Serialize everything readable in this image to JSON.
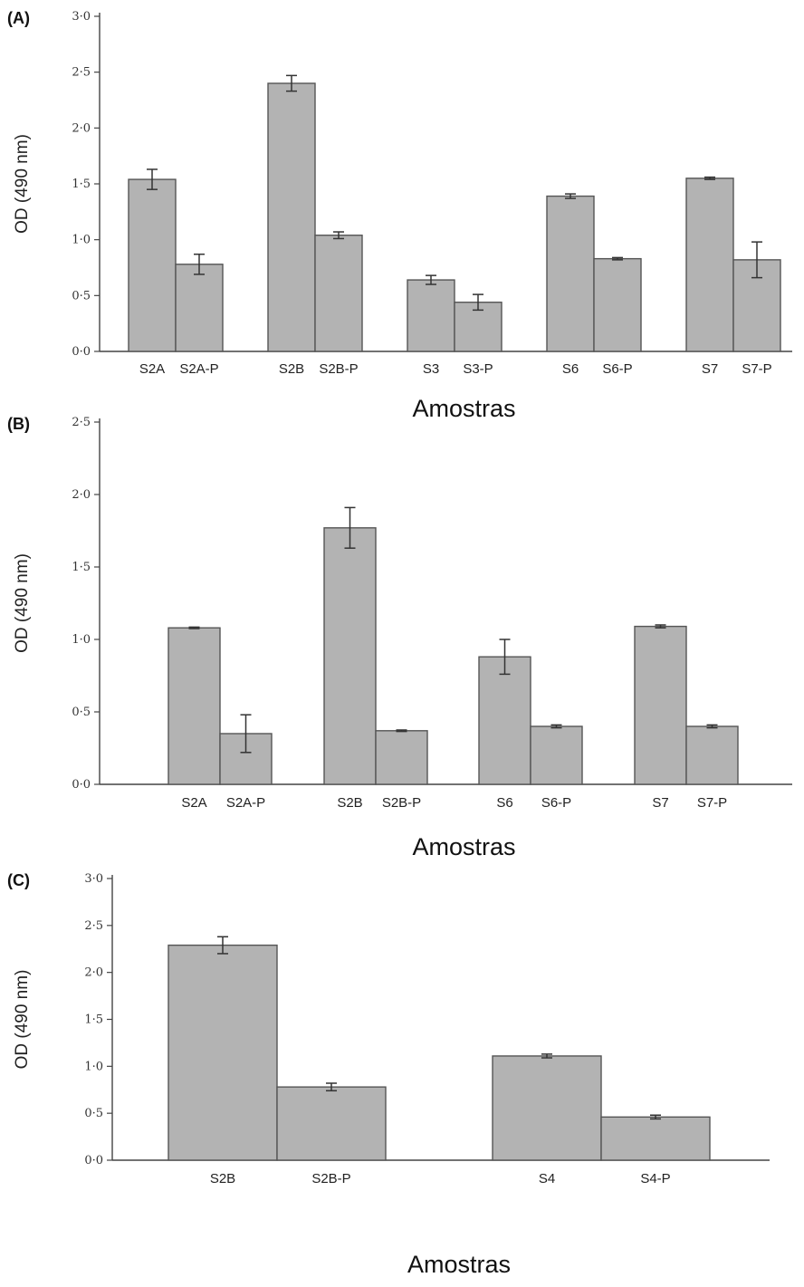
{
  "chart_data": [
    {
      "type": "bar",
      "panel_label": "(A)",
      "xlabel": "Amostras",
      "ylabel": "OD (490 nm)",
      "ylim": [
        0,
        3.0
      ],
      "yticks": [
        "0·0",
        "0·5",
        "1·0",
        "1·5",
        "2·0",
        "2·5",
        "3·0"
      ],
      "grid": false,
      "categories": [
        "S2A",
        "S2A-P",
        "S2B",
        "S2B-P",
        "S3",
        "S3-P",
        "S6",
        "S6-P",
        "S7",
        "S7-P"
      ],
      "values": [
        1.54,
        0.78,
        2.4,
        1.04,
        0.64,
        0.44,
        1.39,
        0.83,
        1.55,
        0.82
      ],
      "errors": [
        0.09,
        0.09,
        0.07,
        0.03,
        0.04,
        0.07,
        0.02,
        0.01,
        0.01,
        0.16
      ]
    },
    {
      "type": "bar",
      "panel_label": "(B)",
      "xlabel": "Amostras",
      "ylabel": "OD (490 nm)",
      "ylim": [
        0,
        2.5
      ],
      "yticks": [
        "0·0",
        "0·5",
        "1·0",
        "1·5",
        "2·0",
        "2·5"
      ],
      "grid": false,
      "categories": [
        "S2A",
        "S2A-P",
        "S2B",
        "S2B-P",
        "S6",
        "S6-P",
        "S7",
        "S7-P"
      ],
      "values": [
        1.08,
        0.35,
        1.77,
        0.37,
        0.88,
        0.4,
        1.09,
        0.4
      ],
      "errors": [
        0.005,
        0.13,
        0.14,
        0.005,
        0.12,
        0.01,
        0.01,
        0.01
      ]
    },
    {
      "type": "bar",
      "panel_label": "(C)",
      "xlabel": "Amostras",
      "ylabel": "OD (490 nm)",
      "ylim": [
        0,
        3.0
      ],
      "yticks": [
        "0·0",
        "0·5",
        "1·0",
        "1·5",
        "2·0",
        "2·5",
        "3·0"
      ],
      "grid": false,
      "categories": [
        "S2B",
        "S2B-P",
        "S4",
        "S4-P"
      ],
      "values": [
        2.29,
        0.78,
        1.11,
        0.46
      ],
      "errors": [
        0.09,
        0.04,
        0.02,
        0.02
      ]
    }
  ]
}
